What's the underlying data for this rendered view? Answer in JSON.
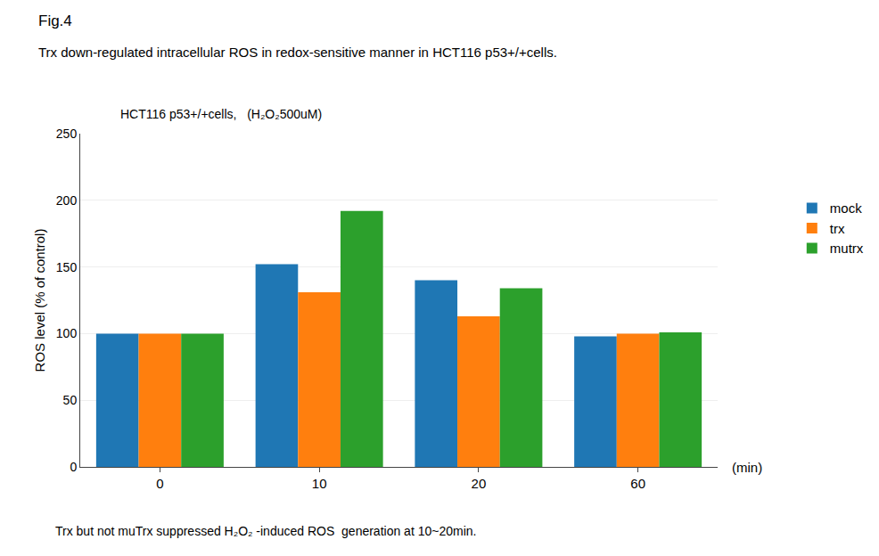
{
  "chart_data": {
    "type": "bar",
    "title": "Trx down-regulated intracellular ROS in redox-sensitive manner in HCT116 p53+/+cells.",
    "subtitle": "HCT116 p53+/+cells,   (H₂O₂500uM)",
    "annotations": [
      "Fig.4",
      "Trx but not muTrx suppressed H₂O₂ -induced ROS  generation at 10~20min."
    ],
    "xlabel": "(min)",
    "ylabel": "ROS level (% of control)",
    "categories": [
      "0",
      "10",
      "20",
      "60"
    ],
    "series": [
      {
        "name": "mock",
        "values": [
          100,
          152,
          140,
          98
        ]
      },
      {
        "name": "trx",
        "values": [
          100,
          131,
          113,
          100
        ]
      },
      {
        "name": "mutrx",
        "values": [
          100,
          192,
          134,
          101
        ]
      }
    ],
    "ylim": [
      0,
      250
    ],
    "yticks": [
      0,
      50,
      100,
      150,
      200,
      250
    ],
    "grid": true,
    "legend": "right"
  }
}
